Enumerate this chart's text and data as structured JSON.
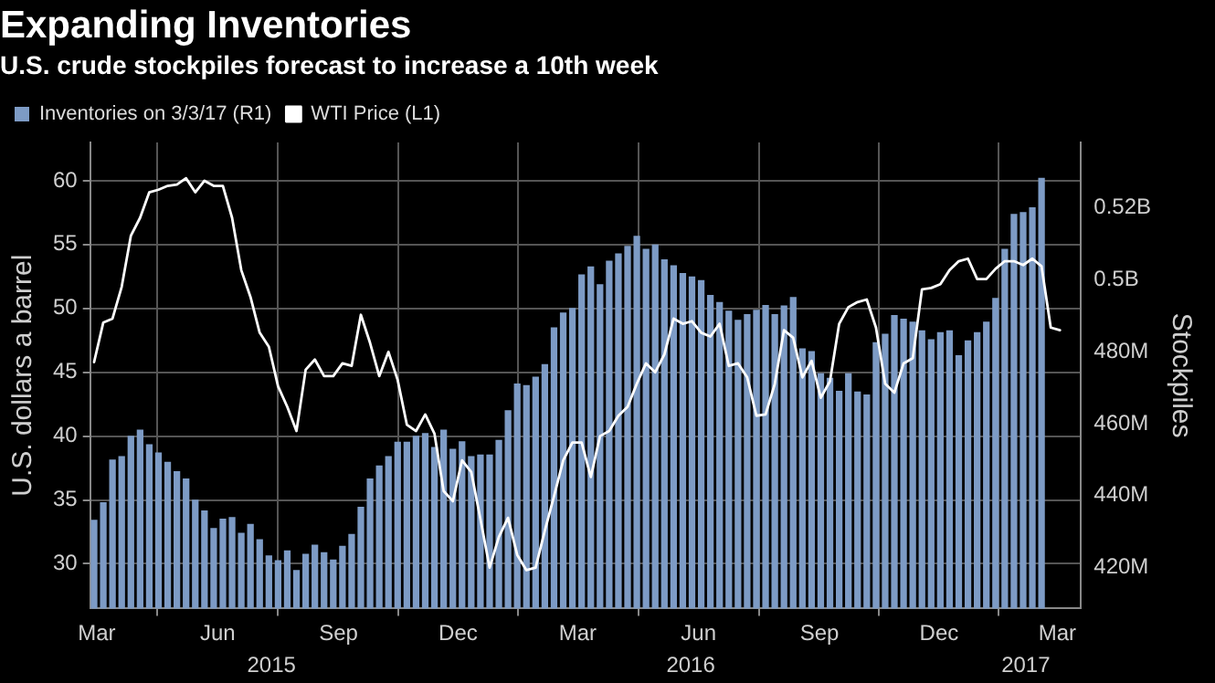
{
  "chart_data": {
    "type": "bar",
    "title": "Expanding Inventories",
    "subtitle": "U.S. crude stockpiles forecast to increase a 10th week",
    "ylabel": "U.S. dollars a barrel",
    "y2label": "Stockpiles",
    "x": [
      "2015-03-13",
      "2015-03-20",
      "2015-03-27",
      "2015-04-03",
      "2015-04-10",
      "2015-04-17",
      "2015-04-24",
      "2015-05-01",
      "2015-05-08",
      "2015-05-15",
      "2015-05-22",
      "2015-05-29",
      "2015-06-05",
      "2015-06-12",
      "2015-06-19",
      "2015-06-26",
      "2015-07-03",
      "2015-07-10",
      "2015-07-17",
      "2015-07-24",
      "2015-07-31",
      "2015-08-07",
      "2015-08-14",
      "2015-08-21",
      "2015-08-28",
      "2015-09-04",
      "2015-09-11",
      "2015-09-18",
      "2015-09-25",
      "2015-10-02",
      "2015-10-09",
      "2015-10-16",
      "2015-10-23",
      "2015-10-30",
      "2015-11-06",
      "2015-11-13",
      "2015-11-20",
      "2015-11-27",
      "2015-12-04",
      "2015-12-11",
      "2015-12-18",
      "2015-12-25",
      "2016-01-01",
      "2016-01-08",
      "2016-01-15",
      "2016-01-22",
      "2016-01-29",
      "2016-02-05",
      "2016-02-12",
      "2016-02-19",
      "2016-02-26",
      "2016-03-04",
      "2016-03-11",
      "2016-03-18",
      "2016-03-25",
      "2016-04-01",
      "2016-04-08",
      "2016-04-15",
      "2016-04-22",
      "2016-04-29",
      "2016-05-06",
      "2016-05-13",
      "2016-05-20",
      "2016-05-27",
      "2016-06-03",
      "2016-06-10",
      "2016-06-17",
      "2016-06-24",
      "2016-07-01",
      "2016-07-08",
      "2016-07-15",
      "2016-07-22",
      "2016-07-29",
      "2016-08-05",
      "2016-08-12",
      "2016-08-19",
      "2016-08-26",
      "2016-09-02",
      "2016-09-09",
      "2016-09-16",
      "2016-09-23",
      "2016-09-30",
      "2016-10-07",
      "2016-10-14",
      "2016-10-21",
      "2016-10-28",
      "2016-11-04",
      "2016-11-11",
      "2016-11-18",
      "2016-11-25",
      "2016-12-02",
      "2016-12-09",
      "2016-12-16",
      "2016-12-23",
      "2016-12-30",
      "2017-01-06",
      "2017-01-13",
      "2017-01-20",
      "2017-01-27",
      "2017-02-03",
      "2017-02-10",
      "2017-02-17",
      "2017-02-24",
      "2017-03-03"
    ],
    "series": [
      {
        "name": "Inventories on 3/3/17 (R1)",
        "axis": "y2",
        "color": "#7d9bc5",
        "values": [
          433300000,
          438200000,
          450000000,
          451000000,
          456600000,
          458300000,
          454300000,
          452000000,
          449400000,
          446800000,
          444800000,
          438900000,
          435900000,
          431000000,
          433600000,
          434100000,
          429700000,
          432200000,
          427900000,
          423400000,
          422100000,
          424800000,
          419400000,
          423900000,
          426400000,
          424300000,
          422300000,
          426100000,
          429400000,
          436900000,
          444800000,
          448400000,
          451000000,
          455000000,
          455000000,
          456600000,
          457400000,
          453500000,
          458300000,
          453000000,
          455100000,
          451000000,
          451400000,
          451400000,
          455500000,
          463700000,
          471100000,
          470700000,
          473000000,
          476500000,
          486700000,
          490800000,
          492100000,
          501400000,
          503600000,
          498700000,
          505200000,
          507200000,
          509300000,
          512100000,
          508500000,
          509700000,
          505600000,
          503900000,
          501800000,
          500800000,
          499800000,
          495700000,
          493700000,
          491300000,
          488800000,
          490400000,
          491600000,
          492900000,
          490400000,
          492800000,
          495100000,
          480900000,
          480100000,
          474000000,
          472700000,
          469100000,
          474000000,
          468900000,
          468100000,
          482600000,
          484900000,
          490100000,
          489100000,
          488300000,
          485900000,
          483400000,
          485400000,
          485900000,
          479000000,
          483100000,
          485400000,
          488300000,
          494900000,
          508500000,
          518200000,
          518700000,
          520000000,
          528200000
        ]
      },
      {
        "name": "WTI Price (L1)",
        "type": "line",
        "color": "#ffffff",
        "x": [
          "2015-03-13",
          "2015-03-20",
          "2015-03-27",
          "2015-04-03",
          "2015-04-10",
          "2015-04-17",
          "2015-04-24",
          "2015-05-01",
          "2015-05-08",
          "2015-05-15",
          "2015-05-22",
          "2015-05-29",
          "2015-06-05",
          "2015-06-12",
          "2015-06-19",
          "2015-06-26",
          "2015-07-03",
          "2015-07-10",
          "2015-07-17",
          "2015-07-24",
          "2015-07-31",
          "2015-08-07",
          "2015-08-14",
          "2015-08-21",
          "2015-08-28",
          "2015-09-04",
          "2015-09-11",
          "2015-09-18",
          "2015-09-25",
          "2015-10-02",
          "2015-10-09",
          "2015-10-16",
          "2015-10-23",
          "2015-10-30",
          "2015-11-06",
          "2015-11-13",
          "2015-11-20",
          "2015-11-27",
          "2015-12-04",
          "2015-12-11",
          "2015-12-18",
          "2015-12-25",
          "2016-01-01",
          "2016-01-08",
          "2016-01-15",
          "2016-01-22",
          "2016-01-29",
          "2016-02-05",
          "2016-02-12",
          "2016-02-19",
          "2016-02-26",
          "2016-03-04",
          "2016-03-11",
          "2016-03-18",
          "2016-03-25",
          "2016-04-01",
          "2016-04-08",
          "2016-04-15",
          "2016-04-22",
          "2016-04-29",
          "2016-05-06",
          "2016-05-13",
          "2016-05-20",
          "2016-05-27",
          "2016-06-03",
          "2016-06-10",
          "2016-06-17",
          "2016-06-24",
          "2016-07-01",
          "2016-07-08",
          "2016-07-15",
          "2016-07-22",
          "2016-07-29",
          "2016-08-05",
          "2016-08-12",
          "2016-08-19",
          "2016-08-26",
          "2016-09-02",
          "2016-09-09",
          "2016-09-16",
          "2016-09-23",
          "2016-09-30",
          "2016-10-07",
          "2016-10-14",
          "2016-10-21",
          "2016-10-28",
          "2016-11-04",
          "2016-11-11",
          "2016-11-18",
          "2016-11-25",
          "2016-12-02",
          "2016-12-09",
          "2016-12-16",
          "2016-12-23",
          "2016-12-30",
          "2017-01-06",
          "2017-01-13",
          "2017-01-20",
          "2017-01-27",
          "2017-02-03",
          "2017-02-10",
          "2017-02-17",
          "2017-02-24",
          "2017-03-03",
          "2017-03-10",
          "2017-03-17"
        ],
        "values": [
          45.8,
          48.9,
          49.2,
          51.7,
          55.7,
          57.1,
          59.1,
          59.3,
          59.6,
          59.7,
          60.2,
          59.1,
          60,
          59.6,
          59.6,
          57.1,
          53,
          50.9,
          48.1,
          47,
          43.9,
          42.3,
          40.4,
          45.2,
          46,
          44.7,
          44.7,
          45.7,
          45.5,
          49.5,
          47.3,
          44.7,
          46.6,
          44.4,
          40.9,
          40.4,
          41.7,
          40.2,
          35.7,
          34.9,
          38.1,
          37.2,
          33.5,
          29.7,
          32.1,
          33.6,
          30.7,
          29.5,
          29.7,
          32.6,
          35.3,
          38.1,
          39.5,
          39.5,
          36.8,
          40,
          40.4,
          41.6,
          42.3,
          44.1,
          45.7,
          45,
          46.4,
          49.2,
          48.8,
          49,
          48.1,
          47.8,
          48.8,
          45.5,
          45.7,
          44.6,
          41.6,
          41.7,
          44.1,
          48.3,
          47.7,
          44.6,
          45.9,
          43,
          44.3,
          48.8,
          50.1,
          50.5,
          50.7,
          48.5,
          44.1,
          43.4,
          45.7,
          46.1,
          51.5,
          51.6,
          51.9,
          53,
          53.7,
          53.9,
          52.3,
          52.3,
          53.1,
          53.7,
          53.7,
          53.4,
          53.9,
          53.3,
          48.5,
          48.3
        ]
      }
    ],
    "xlim": [
      "2015-03-10",
      "2017-04-02"
    ],
    "xticks": [
      {
        "value": "2015-03-15",
        "label": "Mar"
      },
      {
        "value": "2015-06-15",
        "label": "Jun"
      },
      {
        "value": "2015-09-15",
        "label": "Sep"
      },
      {
        "value": "2015-12-15",
        "label": "Dec"
      },
      {
        "value": "2016-03-15",
        "label": "Mar"
      },
      {
        "value": "2016-06-15",
        "label": "Jun"
      },
      {
        "value": "2016-09-15",
        "label": "Sep"
      },
      {
        "value": "2016-12-15",
        "label": "Dec"
      },
      {
        "value": "2017-03-15",
        "label": "Mar"
      }
    ],
    "x2lim": [
      "2015-03-10",
      "2017-04-02"
    ],
    "x2ticks": [
      {
        "value": "2015-07-26",
        "label": "2015"
      },
      {
        "value": "2016-06-09",
        "label": "2016"
      },
      {
        "value": "2017-02-19",
        "label": "2017"
      }
    ],
    "ylim": [
      26.5,
      63
    ],
    "yticks": [
      30,
      35,
      40,
      45,
      50,
      55,
      60
    ],
    "y2lim": [
      408700000,
      538000000
    ],
    "y2ticks": [
      {
        "value": 420000000,
        "label": "420M"
      },
      {
        "value": 440000000,
        "label": "440M"
      },
      {
        "value": 460000000,
        "label": "460M"
      },
      {
        "value": 480000000,
        "label": "480M"
      },
      {
        "value": 500000000,
        "label": "0.5B"
      },
      {
        "value": 520000000,
        "label": "0.52B"
      }
    ],
    "grid": true,
    "legend": "top left",
    "marker": "none",
    "line_style": "solid"
  }
}
